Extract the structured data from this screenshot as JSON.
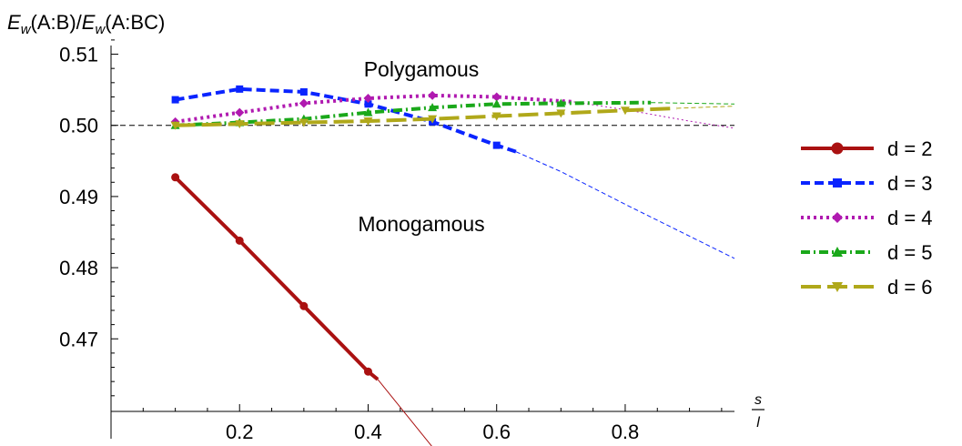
{
  "chart_data": {
    "type": "line",
    "ylabel_parts": {
      "num_E": "E",
      "num_sub": "w",
      "num_rest": "(A:B)/",
      "den_E": "E",
      "den_sub": "w",
      "den_rest": "(A:BC)"
    },
    "xlabel_frac": {
      "num": "s",
      "den": "l"
    },
    "xlim": [
      0,
      0.97
    ],
    "ylim": [
      0.4598,
      0.5125
    ],
    "xticks": [
      0.2,
      0.4,
      0.6,
      0.8
    ],
    "xtick_labels": [
      "0.2",
      "0.4",
      "0.6",
      "0.8"
    ],
    "yticks": [
      0.47,
      0.48,
      0.49,
      0.5,
      0.51
    ],
    "ytick_labels": [
      "0.47",
      "0.48",
      "0.49",
      "0.50",
      "0.51"
    ],
    "reference_line": 0.5,
    "annotations": [
      "Polygamous",
      "Monogamous"
    ],
    "legend_position": "right",
    "series": [
      {
        "name": "d = 2",
        "color": "#aa1111",
        "marker": "circle",
        "dash": "solid",
        "x": [
          0.1,
          0.2,
          0.3,
          0.4,
          0.415
        ],
        "y": [
          0.4927,
          0.4838,
          0.4746,
          0.4654,
          0.4643
        ],
        "ext_x": [
          0.415,
          0.5
        ],
        "ext_y": [
          0.4643,
          0.4548
        ]
      },
      {
        "name": "d = 3",
        "color": "#0a24ff",
        "marker": "square",
        "dash": "dashed",
        "x": [
          0.1,
          0.2,
          0.3,
          0.4,
          0.5,
          0.6,
          0.63
        ],
        "y": [
          0.5036,
          0.5051,
          0.5047,
          0.503,
          0.5005,
          0.4972,
          0.4963
        ],
        "ext_x": [
          0.63,
          0.7,
          0.8,
          0.97
        ],
        "ext_y": [
          0.4963,
          0.4935,
          0.4889,
          0.4813
        ]
      },
      {
        "name": "d = 4",
        "color": "#b01ab0",
        "marker": "diamond",
        "dash": "dotted",
        "x": [
          0.1,
          0.2,
          0.3,
          0.4,
          0.5,
          0.6,
          0.72
        ],
        "y": [
          0.5005,
          0.5018,
          0.5031,
          0.5038,
          0.5042,
          0.504,
          0.5033
        ],
        "ext_x": [
          0.72,
          0.8,
          0.9,
          0.97
        ],
        "ext_y": [
          0.5033,
          0.5022,
          0.5006,
          0.4996
        ]
      },
      {
        "name": "d = 5",
        "color": "#1aa81a",
        "marker": "triangle-up",
        "dash": "dashdot",
        "x": [
          0.1,
          0.2,
          0.3,
          0.4,
          0.5,
          0.6,
          0.7,
          0.84
        ],
        "y": [
          0.5,
          0.5004,
          0.5009,
          0.5018,
          0.5025,
          0.503,
          0.5031,
          0.5032
        ],
        "ext_x": [
          0.84,
          0.97
        ],
        "ext_y": [
          0.5032,
          0.503
        ]
      },
      {
        "name": "d = 6",
        "color": "#b0a81a",
        "marker": "triangle-down",
        "dash": "longdash",
        "x": [
          0.1,
          0.2,
          0.3,
          0.4,
          0.5,
          0.6,
          0.7,
          0.8,
          0.88
        ],
        "y": [
          0.5,
          0.5002,
          0.5004,
          0.5006,
          0.5009,
          0.5013,
          0.5017,
          0.5021,
          0.5024
        ],
        "ext_x": [
          0.88,
          0.97
        ],
        "ext_y": [
          0.5024,
          0.5027
        ]
      }
    ]
  }
}
